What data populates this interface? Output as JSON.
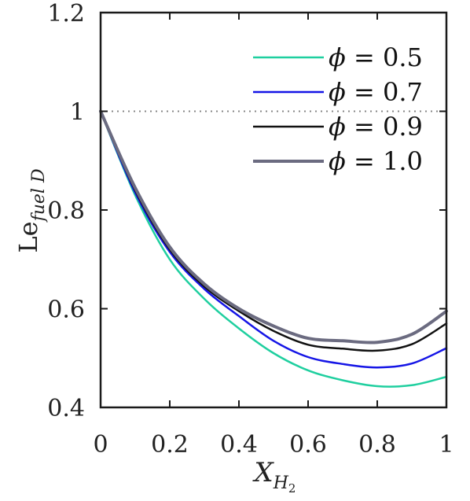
{
  "chart_data": {
    "type": "line",
    "xlabel": {
      "base": "X",
      "sub": "H",
      "subsub": "2"
    },
    "ylabel": {
      "base": "Le",
      "sub": "fuel D"
    },
    "xlim": [
      0,
      1
    ],
    "ylim": [
      0.4,
      1.2
    ],
    "xticks": [
      0,
      0.2,
      0.4,
      0.6,
      0.8,
      1
    ],
    "xtick_labels": [
      "0",
      "0.2",
      "0.4",
      "0.6",
      "0.8",
      "1"
    ],
    "yticks": [
      0.4,
      0.6,
      0.8,
      1,
      1.2
    ],
    "ytick_labels": [
      "0.4",
      "0.6",
      "0.8",
      "1",
      "1.2"
    ],
    "reference_line": {
      "y": 1,
      "style": "dotted",
      "color": "#888888"
    },
    "grid": false,
    "legend_position": "top-right",
    "series": [
      {
        "name": "ϕ = 0.5",
        "symbol": "ϕ",
        "value": "0.5",
        "color": "#1fcf9f",
        "width": 2.5,
        "x": [
          0,
          0.1,
          0.2,
          0.3,
          0.4,
          0.5,
          0.6,
          0.7,
          0.8,
          0.9,
          1.0
        ],
        "y": [
          1.0,
          0.83,
          0.7,
          0.62,
          0.56,
          0.51,
          0.475,
          0.455,
          0.443,
          0.445,
          0.462
        ]
      },
      {
        "name": "ϕ = 0.7",
        "symbol": "ϕ",
        "value": "0.7",
        "color": "#1515e6",
        "width": 2.5,
        "x": [
          0,
          0.1,
          0.2,
          0.3,
          0.4,
          0.5,
          0.6,
          0.7,
          0.8,
          0.9,
          1.0
        ],
        "y": [
          1.0,
          0.835,
          0.715,
          0.64,
          0.585,
          0.535,
          0.502,
          0.488,
          0.481,
          0.489,
          0.52
        ]
      },
      {
        "name": "ϕ = 0.9",
        "symbol": "ϕ",
        "value": "0.9",
        "color": "#111111",
        "width": 2.5,
        "x": [
          0,
          0.1,
          0.2,
          0.3,
          0.4,
          0.5,
          0.6,
          0.7,
          0.8,
          0.9,
          1.0
        ],
        "y": [
          1.0,
          0.84,
          0.72,
          0.645,
          0.595,
          0.555,
          0.527,
          0.519,
          0.515,
          0.528,
          0.57
        ]
      },
      {
        "name": "ϕ = 1.0",
        "symbol": "ϕ",
        "value": "1.0",
        "color": "#6b6b80",
        "width": 4,
        "x": [
          0,
          0.1,
          0.2,
          0.3,
          0.4,
          0.5,
          0.6,
          0.7,
          0.8,
          0.9,
          1.0
        ],
        "y": [
          1.0,
          0.845,
          0.725,
          0.65,
          0.6,
          0.565,
          0.54,
          0.535,
          0.532,
          0.548,
          0.595
        ]
      }
    ]
  }
}
